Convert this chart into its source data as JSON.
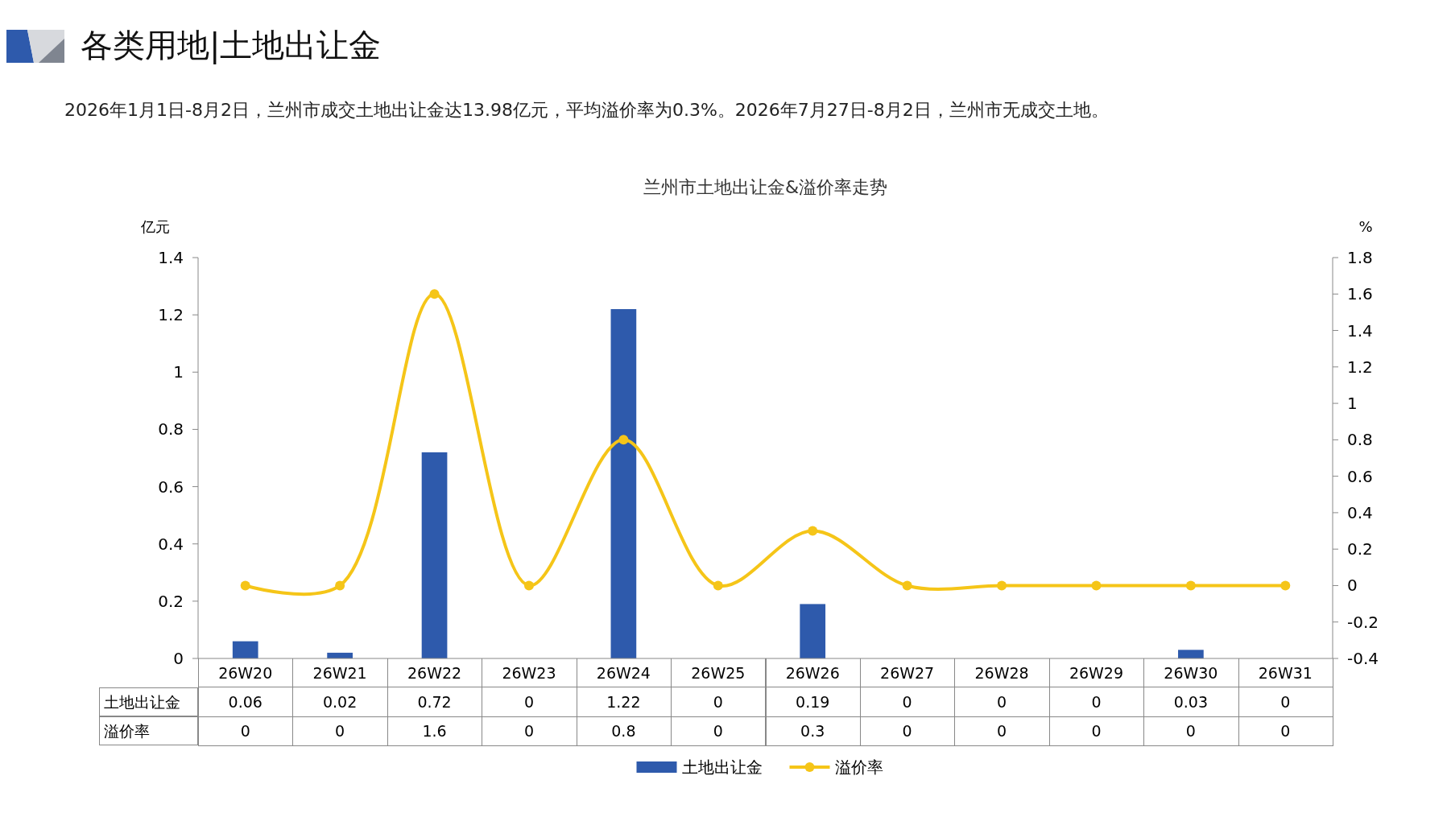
{
  "chart_data": {
    "type": "bar",
    "title": "兰州市土地出让金&溢价率走势",
    "annotations": [
      "各类用地|土地出让金",
      "2026年1月1日-8月2日，兰州市成交土地出让金达13.98亿元，平均溢价率为0.3%。2026年7月27日-8月2日，兰州市无成交土地。"
    ],
    "ylabel": "亿元",
    "y2label": "%",
    "categories": [
      "26W20",
      "26W21",
      "26W22",
      "26W23",
      "26W24",
      "26W25",
      "26W26",
      "26W27",
      "26W28",
      "26W29",
      "26W30",
      "26W31"
    ],
    "series": [
      {
        "name": "土地出让金",
        "color": "#2e5aac",
        "values": [
          0.06,
          0.02,
          0.72,
          0,
          1.22,
          0,
          0.19,
          0,
          0,
          0,
          0.03,
          0
        ]
      },
      {
        "name": "溢价率",
        "type": "line",
        "axis": "y2",
        "color": "#f5c518",
        "marker": "circle",
        "values": [
          0,
          0,
          1.6,
          0,
          0.8,
          0,
          0.3,
          0,
          0,
          0,
          0,
          0
        ]
      }
    ],
    "ylim": [
      0,
      1.4
    ],
    "yticks": [
      0,
      0.2,
      0.4,
      0.6,
      0.8,
      1,
      1.2,
      1.4
    ],
    "y2lim": [
      -0.4,
      1.8
    ],
    "y2ticks": [
      -0.4,
      -0.2,
      0,
      0.2,
      0.4,
      0.6,
      0.8,
      1,
      1.2,
      1.4,
      1.6,
      1.8
    ],
    "data_labels": true,
    "legend": "bottom",
    "grid": false
  }
}
